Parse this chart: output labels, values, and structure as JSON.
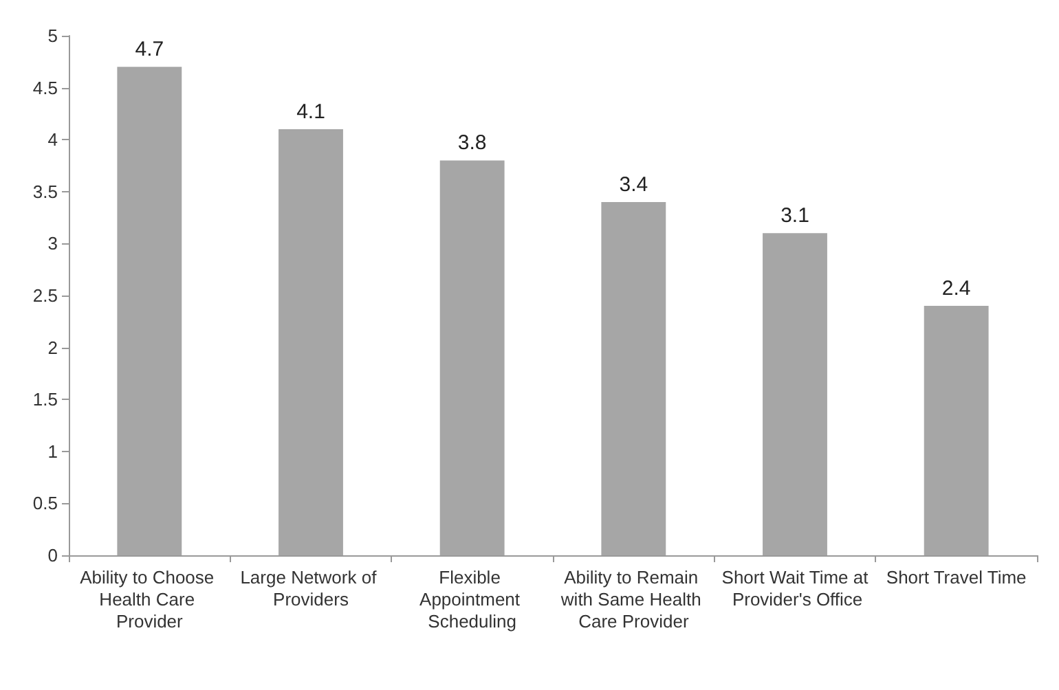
{
  "chart_data": {
    "type": "bar",
    "categories": [
      "Ability to Choose Health Care Provider",
      "Large Network of Providers",
      "Flexible Appointment Scheduling",
      "Ability to Remain with Same Health Care Provider",
      "Short Wait Time at Provider's Office",
      "Short Travel Time"
    ],
    "values": [
      4.7,
      4.1,
      3.8,
      3.4,
      3.1,
      2.4
    ],
    "color": "#a6a6a6",
    "ylim": [
      0,
      5
    ],
    "yticks": [
      0,
      0.5,
      1,
      1.5,
      2,
      2.5,
      3,
      3.5,
      4,
      4.5,
      5
    ],
    "grid": false,
    "data_labels": true
  }
}
